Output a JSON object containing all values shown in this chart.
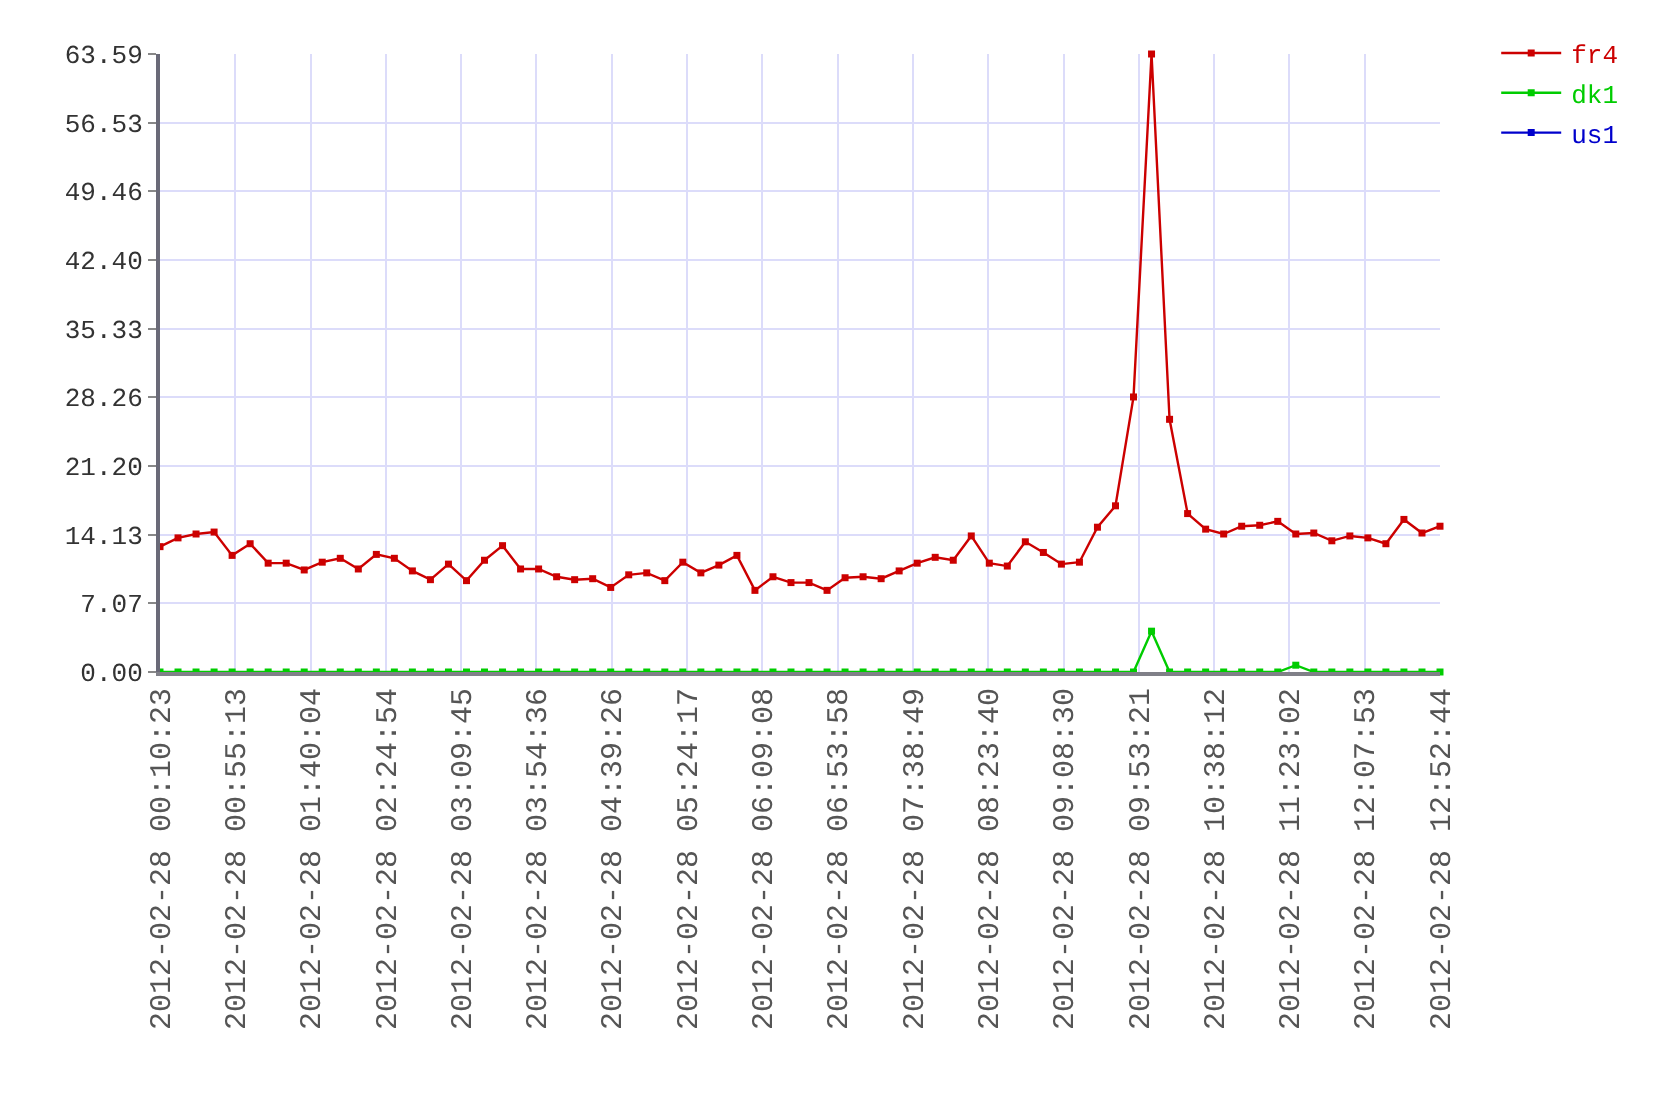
{
  "chart_data": {
    "type": "line",
    "x": [
      "2012-02-28T00:10:23",
      "2012-02-28T00:21:07",
      "2012-02-28T00:31:51",
      "2012-02-28T00:42:36",
      "2012-02-28T00:53:20",
      "2012-02-28T01:04:04",
      "2012-02-28T01:14:48",
      "2012-02-28T01:25:33",
      "2012-02-28T01:36:17",
      "2012-02-28T01:47:01",
      "2012-02-28T01:57:45",
      "2012-02-28T02:08:30",
      "2012-02-28T02:19:14",
      "2012-02-28T02:29:58",
      "2012-02-28T02:40:42",
      "2012-02-28T02:51:27",
      "2012-02-28T03:02:11",
      "2012-02-28T03:12:55",
      "2012-02-28T03:23:39",
      "2012-02-28T03:34:24",
      "2012-02-28T03:45:08",
      "2012-02-28T03:55:52",
      "2012-02-28T04:06:36",
      "2012-02-28T04:17:20",
      "2012-02-28T04:28:05",
      "2012-02-28T04:38:49",
      "2012-02-28T04:49:33",
      "2012-02-28T05:00:17",
      "2012-02-28T05:11:02",
      "2012-02-28T05:21:46",
      "2012-02-28T05:32:30",
      "2012-02-28T05:43:14",
      "2012-02-28T05:53:59",
      "2012-02-28T06:04:43",
      "2012-02-28T06:15:27",
      "2012-02-28T06:26:11",
      "2012-02-28T06:36:56",
      "2012-02-28T06:47:40",
      "2012-02-28T06:58:24",
      "2012-02-28T07:09:08",
      "2012-02-28T07:19:53",
      "2012-02-28T07:30:37",
      "2012-02-28T07:41:21",
      "2012-02-28T07:52:05",
      "2012-02-28T08:02:50",
      "2012-02-28T08:13:34",
      "2012-02-28T08:24:18",
      "2012-02-28T08:35:02",
      "2012-02-28T08:45:46",
      "2012-02-28T08:56:31",
      "2012-02-28T09:07:15",
      "2012-02-28T09:17:59",
      "2012-02-28T09:28:43",
      "2012-02-28T09:39:28",
      "2012-02-28T09:50:12",
      "2012-02-28T10:00:56",
      "2012-02-28T10:11:40",
      "2012-02-28T10:22:25",
      "2012-02-28T10:33:09",
      "2012-02-28T10:43:53",
      "2012-02-28T10:54:37",
      "2012-02-28T11:05:22",
      "2012-02-28T11:16:06",
      "2012-02-28T11:26:50",
      "2012-02-28T11:37:34",
      "2012-02-28T11:48:19",
      "2012-02-28T11:59:03",
      "2012-02-28T12:09:47",
      "2012-02-28T12:20:31",
      "2012-02-28T12:31:15",
      "2012-02-28T12:42:00",
      "2012-02-28T12:52:44"
    ],
    "series": [
      {
        "name": "fr4",
        "color": "#cc0000",
        "values": [
          12.9,
          13.8,
          14.2,
          14.4,
          12.0,
          13.2,
          11.2,
          11.2,
          10.5,
          11.3,
          11.7,
          10.6,
          12.1,
          11.7,
          10.4,
          9.5,
          11.1,
          9.4,
          11.5,
          13.0,
          10.6,
          10.6,
          9.8,
          9.5,
          9.6,
          8.7,
          10.0,
          10.2,
          9.4,
          11.3,
          10.2,
          11.0,
          12.0,
          8.4,
          9.8,
          9.2,
          9.2,
          8.4,
          9.7,
          9.8,
          9.6,
          10.4,
          11.2,
          11.8,
          11.5,
          14.0,
          11.2,
          10.9,
          13.4,
          12.3,
          11.1,
          11.3,
          14.9,
          17.1,
          28.3,
          63.59,
          26.0,
          16.3,
          14.7,
          14.2,
          15.0,
          15.1,
          15.5,
          14.2,
          14.3,
          13.5,
          14.0,
          13.8,
          13.2,
          15.7,
          14.3,
          15.0
        ]
      },
      {
        "name": "dk1",
        "color": "#00cc00",
        "values": [
          0,
          0,
          0,
          0,
          0,
          0,
          0,
          0,
          0,
          0,
          0,
          0,
          0,
          0,
          0,
          0,
          0,
          0,
          0,
          0,
          0,
          0,
          0,
          0,
          0,
          0,
          0,
          0,
          0,
          0,
          0,
          0,
          0,
          0,
          0,
          0,
          0,
          0,
          0,
          0,
          0,
          0,
          0,
          0,
          0,
          0,
          0,
          0,
          0,
          0,
          0,
          0,
          0,
          0,
          0,
          4.2,
          0,
          0,
          0,
          0,
          0,
          0,
          0,
          0.7,
          0,
          0,
          0,
          0,
          0,
          0,
          0,
          0
        ]
      },
      {
        "name": "us1",
        "color": "#0000cc",
        "values": [
          null,
          null,
          null,
          null,
          null,
          null,
          null,
          null,
          null,
          null,
          null,
          null,
          null,
          null,
          null,
          null,
          null,
          null,
          null,
          null,
          null,
          null,
          null,
          null,
          null,
          null,
          null,
          null,
          null,
          null,
          null,
          null,
          null,
          null,
          null,
          null,
          null,
          null,
          null,
          null,
          null,
          null,
          null,
          null,
          null,
          null,
          null,
          null,
          null,
          null,
          null,
          null,
          null,
          null,
          null,
          null,
          null,
          null,
          null,
          null,
          null,
          null,
          null,
          null,
          null,
          null,
          null,
          null,
          null,
          null,
          null,
          null
        ]
      }
    ],
    "xlim": [
      "2012-02-28T00:10:23",
      "2012-02-28T12:52:44"
    ],
    "xticks": [
      {
        "value": "2012-02-28T00:10:23",
        "label": "2012-02-28 00:10:23"
      },
      {
        "value": "2012-02-28T00:55:13",
        "label": "2012-02-28 00:55:13"
      },
      {
        "value": "2012-02-28T01:40:04",
        "label": "2012-02-28 01:40:04"
      },
      {
        "value": "2012-02-28T02:24:54",
        "label": "2012-02-28 02:24:54"
      },
      {
        "value": "2012-02-28T03:09:45",
        "label": "2012-02-28 03:09:45"
      },
      {
        "value": "2012-02-28T03:54:36",
        "label": "2012-02-28 03:54:36"
      },
      {
        "value": "2012-02-28T04:39:26",
        "label": "2012-02-28 04:39:26"
      },
      {
        "value": "2012-02-28T05:24:17",
        "label": "2012-02-28 05:24:17"
      },
      {
        "value": "2012-02-28T06:09:08",
        "label": "2012-02-28 06:09:08"
      },
      {
        "value": "2012-02-28T06:53:58",
        "label": "2012-02-28 06:53:58"
      },
      {
        "value": "2012-02-28T07:38:49",
        "label": "2012-02-28 07:38:49"
      },
      {
        "value": "2012-02-28T08:23:40",
        "label": "2012-02-28 08:23:40"
      },
      {
        "value": "2012-02-28T09:08:30",
        "label": "2012-02-28 09:08:30"
      },
      {
        "value": "2012-02-28T09:53:21",
        "label": "2012-02-28 09:53:21"
      },
      {
        "value": "2012-02-28T10:38:12",
        "label": "2012-02-28 10:38:12"
      },
      {
        "value": "2012-02-28T11:23:02",
        "label": "2012-02-28 11:23:02"
      },
      {
        "value": "2012-02-28T12:07:53",
        "label": "2012-02-28 12:07:53"
      },
      {
        "value": "2012-02-28T12:52:44",
        "label": "2012-02-28 12:52:44"
      }
    ],
    "ylim": [
      0,
      63.59
    ],
    "yticks": [
      {
        "value": 0,
        "label": "0.00"
      },
      {
        "value": 7.07,
        "label": "7.07"
      },
      {
        "value": 14.13,
        "label": "14.13"
      },
      {
        "value": 21.2,
        "label": "21.20"
      },
      {
        "value": 28.26,
        "label": "28.26"
      },
      {
        "value": 35.33,
        "label": "35.33"
      },
      {
        "value": 42.4,
        "label": "42.40"
      },
      {
        "value": 49.46,
        "label": "49.46"
      },
      {
        "value": 56.53,
        "label": "56.53"
      },
      {
        "value": 63.59,
        "label": "63.59"
      }
    ],
    "grid": true,
    "legend": "top right",
    "marker": "square",
    "line_style": "solid"
  }
}
